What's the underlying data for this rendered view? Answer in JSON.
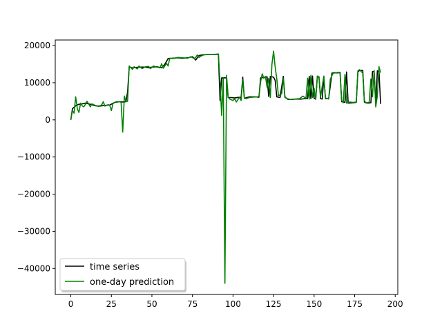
{
  "chart_data": {
    "type": "line",
    "title": "",
    "xlabel": "",
    "ylabel": "",
    "xlim": [
      -9.6,
      201.6
    ],
    "ylim": [
      -47000,
      21500
    ],
    "xticks": [
      0,
      25,
      50,
      75,
      100,
      125,
      150,
      175,
      200
    ],
    "yticks": [
      -40000,
      -30000,
      -20000,
      -10000,
      0,
      10000,
      20000
    ],
    "grid": false,
    "legend_position": "lower-left",
    "series": [
      {
        "name": "time series",
        "color": "#000000",
        "points": [
          [
            0,
            0
          ],
          [
            1,
            3000
          ],
          [
            3,
            3800
          ],
          [
            5,
            4200
          ],
          [
            7,
            4300
          ],
          [
            9,
            4500
          ],
          [
            12,
            4200
          ],
          [
            15,
            3800
          ],
          [
            18,
            3700
          ],
          [
            21,
            3900
          ],
          [
            24,
            4000
          ],
          [
            27,
            4700
          ],
          [
            30,
            4900
          ],
          [
            32,
            4800
          ],
          [
            34,
            4900
          ],
          [
            35,
            7500
          ],
          [
            36,
            14200
          ],
          [
            38,
            14000
          ],
          [
            40,
            14100
          ],
          [
            43,
            14200
          ],
          [
            46,
            14200
          ],
          [
            48,
            14000
          ],
          [
            50,
            14200
          ],
          [
            53,
            14300
          ],
          [
            56,
            14000
          ],
          [
            58,
            15000
          ],
          [
            60,
            16500
          ],
          [
            63,
            16600
          ],
          [
            66,
            16700
          ],
          [
            69,
            16600
          ],
          [
            72,
            16700
          ],
          [
            75,
            17000
          ],
          [
            77,
            16100
          ],
          [
            79,
            17300
          ],
          [
            81,
            17500
          ],
          [
            84,
            17600
          ],
          [
            87,
            17600
          ],
          [
            91,
            17700
          ],
          [
            92,
            5200
          ],
          [
            93,
            11300
          ],
          [
            96,
            11300
          ],
          [
            97,
            6000
          ],
          [
            99,
            6000
          ],
          [
            101,
            5900
          ],
          [
            104,
            6100
          ],
          [
            105,
            6000
          ],
          [
            106,
            11500
          ],
          [
            107,
            5800
          ],
          [
            110,
            6200
          ],
          [
            113,
            6200
          ],
          [
            116,
            6100
          ],
          [
            117,
            11300
          ],
          [
            119,
            11400
          ],
          [
            121,
            11600
          ],
          [
            122,
            6300
          ],
          [
            123,
            11700
          ],
          [
            125,
            11500
          ],
          [
            126,
            10600
          ],
          [
            127,
            6200
          ],
          [
            129,
            6000
          ],
          [
            131,
            11700
          ],
          [
            132,
            6100
          ],
          [
            134,
            5500
          ],
          [
            136,
            5500
          ],
          [
            139,
            5600
          ],
          [
            142,
            5600
          ],
          [
            144,
            5700
          ],
          [
            146,
            5700
          ],
          [
            147,
            11700
          ],
          [
            148,
            5700
          ],
          [
            149,
            11800
          ],
          [
            150,
            5800
          ],
          [
            151,
            5700
          ],
          [
            152,
            11700
          ],
          [
            153,
            11500
          ],
          [
            154,
            5700
          ],
          [
            155,
            5600
          ],
          [
            156,
            11600
          ],
          [
            157,
            5700
          ],
          [
            159,
            5800
          ],
          [
            161,
            12600
          ],
          [
            164,
            12700
          ],
          [
            166,
            12800
          ],
          [
            167,
            4900
          ],
          [
            169,
            4700
          ],
          [
            170,
            12900
          ],
          [
            171,
            4500
          ],
          [
            174,
            4600
          ],
          [
            176,
            4700
          ],
          [
            177,
            12900
          ],
          [
            178,
            13300
          ],
          [
            180,
            13300
          ],
          [
            181,
            4800
          ],
          [
            183,
            4500
          ],
          [
            185,
            4600
          ],
          [
            186,
            13000
          ],
          [
            187,
            13000
          ],
          [
            188,
            4400
          ],
          [
            189,
            13200
          ],
          [
            190,
            13000
          ],
          [
            191,
            4300
          ]
        ]
      },
      {
        "name": "one-day prediction",
        "color": "#008000",
        "points": [
          [
            0,
            100
          ],
          [
            1,
            2500
          ],
          [
            2,
            1800
          ],
          [
            3,
            6200
          ],
          [
            4,
            3000
          ],
          [
            5,
            2000
          ],
          [
            6,
            4500
          ],
          [
            7,
            3800
          ],
          [
            8,
            3500
          ],
          [
            9,
            4200
          ],
          [
            10,
            5000
          ],
          [
            11,
            4300
          ],
          [
            12,
            3500
          ],
          [
            13,
            4300
          ],
          [
            15,
            3900
          ],
          [
            17,
            3600
          ],
          [
            19,
            4000
          ],
          [
            20,
            4900
          ],
          [
            21,
            3700
          ],
          [
            23,
            4100
          ],
          [
            24,
            3900
          ],
          [
            25,
            2500
          ],
          [
            26,
            4400
          ],
          [
            28,
            4900
          ],
          [
            30,
            4900
          ],
          [
            31,
            4700
          ],
          [
            32,
            -3300
          ],
          [
            33,
            6400
          ],
          [
            34,
            4900
          ],
          [
            35,
            5000
          ],
          [
            36,
            14500
          ],
          [
            38,
            13600
          ],
          [
            39,
            14300
          ],
          [
            41,
            13700
          ],
          [
            42,
            14500
          ],
          [
            44,
            13800
          ],
          [
            46,
            14300
          ],
          [
            48,
            14400
          ],
          [
            49,
            13800
          ],
          [
            51,
            14500
          ],
          [
            53,
            14200
          ],
          [
            55,
            14000
          ],
          [
            56,
            15100
          ],
          [
            57,
            13900
          ],
          [
            59,
            15200
          ],
          [
            60,
            14500
          ],
          [
            61,
            16600
          ],
          [
            63,
            16500
          ],
          [
            66,
            16800
          ],
          [
            69,
            16700
          ],
          [
            72,
            16600
          ],
          [
            74,
            17000
          ],
          [
            76,
            16500
          ],
          [
            77,
            16800
          ],
          [
            78,
            17500
          ],
          [
            79,
            16800
          ],
          [
            80,
            17100
          ],
          [
            82,
            17500
          ],
          [
            85,
            17600
          ],
          [
            88,
            17600
          ],
          [
            91,
            17600
          ],
          [
            92,
            10200
          ],
          [
            93,
            1200
          ],
          [
            94,
            11300
          ],
          [
            95,
            -44000
          ],
          [
            96,
            12000
          ],
          [
            97,
            6200
          ],
          [
            98,
            5600
          ],
          [
            100,
            5200
          ],
          [
            101,
            5700
          ],
          [
            102,
            4800
          ],
          [
            104,
            6100
          ],
          [
            105,
            5200
          ],
          [
            106,
            10900
          ],
          [
            107,
            5900
          ],
          [
            108,
            5700
          ],
          [
            110,
            6000
          ],
          [
            112,
            6100
          ],
          [
            115,
            6200
          ],
          [
            116,
            6300
          ],
          [
            117,
            10200
          ],
          [
            118,
            12400
          ],
          [
            119,
            11200
          ],
          [
            120,
            11700
          ],
          [
            121,
            8800
          ],
          [
            122,
            11200
          ],
          [
            123,
            6000
          ],
          [
            124,
            15000
          ],
          [
            125,
            18500
          ],
          [
            126,
            14200
          ],
          [
            127,
            11000
          ],
          [
            128,
            6500
          ],
          [
            130,
            7000
          ],
          [
            131,
            11200
          ],
          [
            132,
            6300
          ],
          [
            133,
            5800
          ],
          [
            135,
            5500
          ],
          [
            138,
            5600
          ],
          [
            141,
            5700
          ],
          [
            143,
            6400
          ],
          [
            145,
            5800
          ],
          [
            146,
            11200
          ],
          [
            147,
            5600
          ],
          [
            148,
            12000
          ],
          [
            149,
            6000
          ],
          [
            150,
            8500
          ],
          [
            151,
            5500
          ],
          [
            152,
            11800
          ],
          [
            153,
            11600
          ],
          [
            154,
            6200
          ],
          [
            155,
            9000
          ],
          [
            156,
            11800
          ],
          [
            157,
            5900
          ],
          [
            159,
            5600
          ],
          [
            160,
            11000
          ],
          [
            162,
            12800
          ],
          [
            164,
            12600
          ],
          [
            166,
            12700
          ],
          [
            167,
            5200
          ],
          [
            168,
            4600
          ],
          [
            169,
            12200
          ],
          [
            170,
            4500
          ],
          [
            172,
            4800
          ],
          [
            174,
            4700
          ],
          [
            176,
            4800
          ],
          [
            177,
            13200
          ],
          [
            178,
            13500
          ],
          [
            179,
            13000
          ],
          [
            180,
            12600
          ],
          [
            181,
            5200
          ],
          [
            182,
            4500
          ],
          [
            184,
            4800
          ],
          [
            185,
            11000
          ],
          [
            186,
            6200
          ],
          [
            187,
            13300
          ],
          [
            188,
            3500
          ],
          [
            189,
            6500
          ],
          [
            190,
            14300
          ],
          [
            191,
            12700
          ]
        ]
      }
    ]
  }
}
